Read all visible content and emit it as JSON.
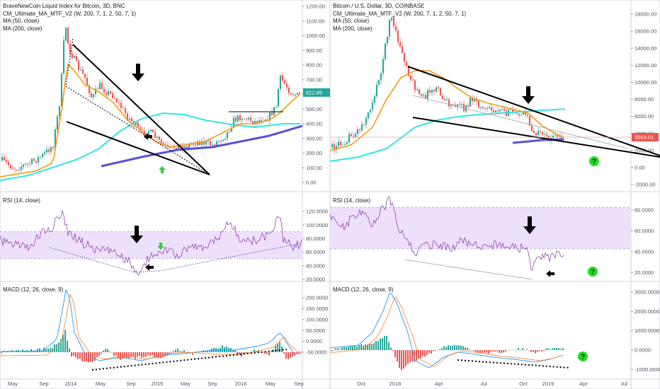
{
  "left": {
    "legend": {
      "title": "BraveNewCoin Liquid Index for Bitcoin, 3D, BNC",
      "ind1": "CM_Ultimate_MA_MTF_V2 (W, 200, 7, 1, 2, 50, 7, 1)",
      "ind2": "MA (50, close)",
      "ind3": "MA (200, close)",
      "rsi": "RSI (14, close)",
      "macd": "MACD (12, 26, close, 9)"
    },
    "price_ticks": [
      "1200.00",
      "1100.00",
      "1000.00",
      "900.00",
      "800.00",
      "700.00",
      "600.00",
      "500.00",
      "400.00",
      "300.00",
      "200.00",
      "100.00",
      "0.00"
    ],
    "price_tag": "612.89",
    "rsi_ticks": [
      "120.0000",
      "100.0000",
      "80.0000",
      "60.0000",
      "40.0000",
      "20.0000"
    ],
    "macd_ticks": [
      "200.0000",
      "150.0000",
      "100.0000",
      "50.0000",
      "0.0000",
      "-50.0000"
    ],
    "time_ticks": [
      "May",
      "Sep",
      "2014",
      "May",
      "Sep",
      "2015",
      "May",
      "Sep",
      "2016",
      "May",
      "Sep"
    ]
  },
  "right": {
    "legend": {
      "title": "Bitcoin / U.S. Dollar, 3D, COINBASE",
      "ind1": "CM_Ultimate_MA_MTF_V2 (W, 200, 7, 1, 2, 50, 7, 1)",
      "ind2": "MA (50, close)",
      "ind3": "MA (200, close)",
      "rsi": "RSI (14, close)",
      "macd": "MACD (12, 26, close, 9)"
    },
    "price_ticks": [
      "18000.00",
      "16000.00",
      "14000.00",
      "12000.00",
      "10000.00",
      "8000.00",
      "6000.00",
      "4000.00",
      "2000.00",
      "0.00",
      "-2000.00"
    ],
    "price_tag": "3563.01",
    "rsi_ticks": [
      "80.0000",
      "60.0000",
      "40.0000",
      "20.0000"
    ],
    "macd_ticks": [
      "3000.0000",
      "2000.0000",
      "1000.0000",
      "0.0000",
      "-1000.0000"
    ],
    "time_ticks": [
      "Oct",
      "2018",
      "Apr",
      "Jul",
      "Oct",
      "2019",
      "Apr",
      "Jul"
    ]
  },
  "colors": {
    "candle_up": "#26a69a",
    "candle_down": "#ef5350",
    "ma50": "#f39c12",
    "ma200": "#2ee5e5",
    "ultimate_ma": "#5b4fd9",
    "rsi_line": "#8e44ad",
    "rsi_band": "#ede0fb",
    "macd_line": "#2196f3",
    "signal_line": "#ff8c42",
    "price_tag_left": "#26a69a",
    "price_tag_right": "#ef5350",
    "arrow_green": "#2ecc40",
    "question_bg": "#22dd22"
  },
  "chart_data": [
    {
      "type": "line",
      "title": "BraveNewCoin Liquid Index for Bitcoin, 3D, BNC",
      "x": [
        "2013-05",
        "2013-09",
        "2014-01",
        "2014-05",
        "2014-09",
        "2015-01",
        "2015-05",
        "2015-09",
        "2016-01",
        "2016-05",
        "2016-09"
      ],
      "series": [
        {
          "name": "MA (50, close)",
          "values": [
            60,
            120,
            650,
            600,
            450,
            300,
            250,
            240,
            350,
            420,
            560
          ]
        },
        {
          "name": "MA (200, close)",
          "values": [
            30,
            50,
            150,
            350,
            480,
            510,
            480,
            420,
            400,
            420,
            480
          ]
        },
        {
          "name": "CM_Ultimate_MA_MTF_V2",
          "values": [
            null,
            null,
            null,
            null,
            110,
            150,
            200,
            240,
            280,
            320,
            380
          ]
        }
      ],
      "ylim": [
        0,
        1200
      ],
      "last_price": 612.89
    },
    {
      "type": "line",
      "title": "Bitcoin / U.S. Dollar, 3D, COINBASE",
      "x": [
        "2017-10",
        "2018-01",
        "2018-04",
        "2018-07",
        "2018-10",
        "2019-01"
      ],
      "series": [
        {
          "name": "MA (50, close)",
          "values": [
            4500,
            12000,
            10500,
            7300,
            6500,
            4200
          ]
        },
        {
          "name": "MA (200, close)",
          "values": [
            2500,
            4200,
            5800,
            6500,
            6700,
            6900
          ]
        },
        {
          "name": "CM_Ultimate_MA_MTF_V2",
          "values": [
            null,
            null,
            null,
            null,
            3000,
            3300
          ]
        }
      ],
      "ylim": [
        -2000,
        18000
      ],
      "last_price": 3563.01
    }
  ]
}
